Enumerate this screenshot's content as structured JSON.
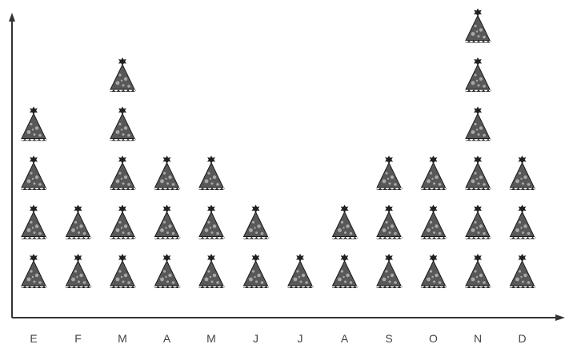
{
  "chart_data": {
    "type": "pictograph",
    "icon": "party-hat-icon",
    "categories": [
      "E",
      "F",
      "M",
      "A",
      "M",
      "J",
      "J",
      "A",
      "S",
      "O",
      "N",
      "D"
    ],
    "values": [
      4,
      2,
      5,
      3,
      3,
      2,
      1,
      2,
      3,
      3,
      6,
      3
    ],
    "title": "",
    "xlabel": "",
    "ylabel": "",
    "grid": false,
    "legend": "none"
  },
  "colors": {
    "hat_fill": "#585858",
    "hat_stroke": "#1c1c1c",
    "hat_dots": "#a8a8a8",
    "axis": "#333333"
  }
}
